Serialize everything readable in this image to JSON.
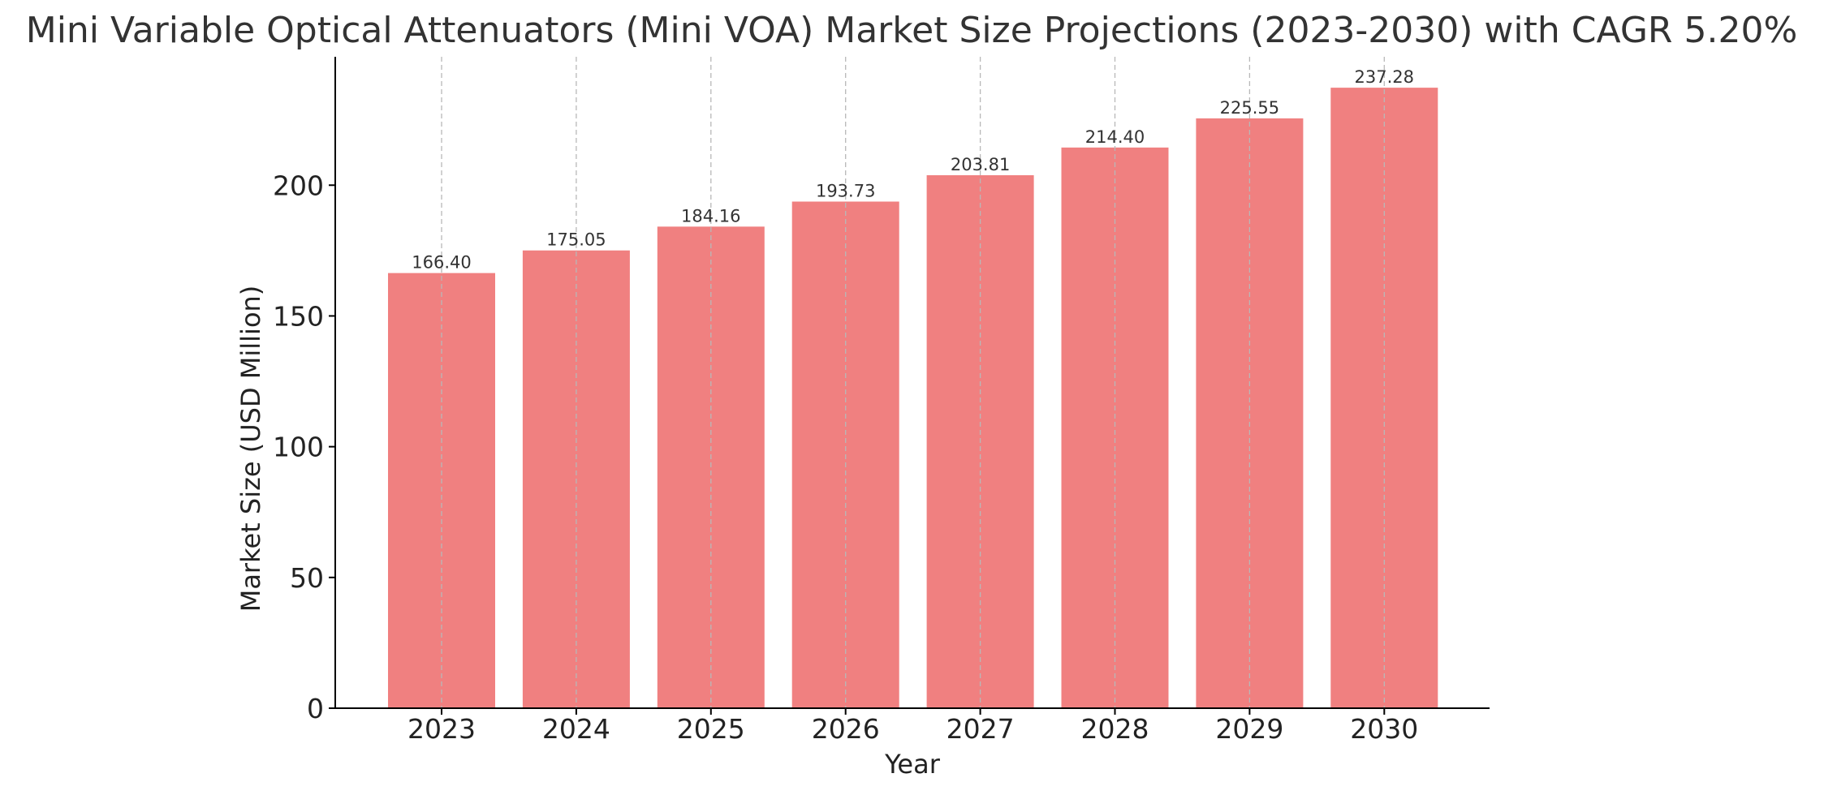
{
  "chart_data": {
    "type": "bar",
    "title": "Mini Variable Optical Attenuators (Mini VOA) Market Size Projections (2023-2030) with CAGR 5.20%",
    "xlabel": "Year",
    "ylabel": "Market Size (USD Million)",
    "categories": [
      "2023",
      "2024",
      "2025",
      "2026",
      "2027",
      "2028",
      "2029",
      "2030"
    ],
    "values": [
      166.4,
      175.05,
      184.16,
      193.73,
      203.81,
      214.4,
      225.55,
      237.28
    ],
    "data_labels": [
      "166.40",
      "175.05",
      "184.16",
      "193.73",
      "203.81",
      "214.40",
      "225.55",
      "237.28"
    ],
    "ylim": [
      0,
      249.1
    ],
    "yticks": [
      0,
      50,
      100,
      150,
      200
    ],
    "ytick_labels": [
      "0",
      "50",
      "100",
      "150",
      "200"
    ],
    "grid": "vertical dashed lines at each year",
    "legend": "none",
    "bar_color": "#f08080",
    "text_color": "#333333"
  }
}
